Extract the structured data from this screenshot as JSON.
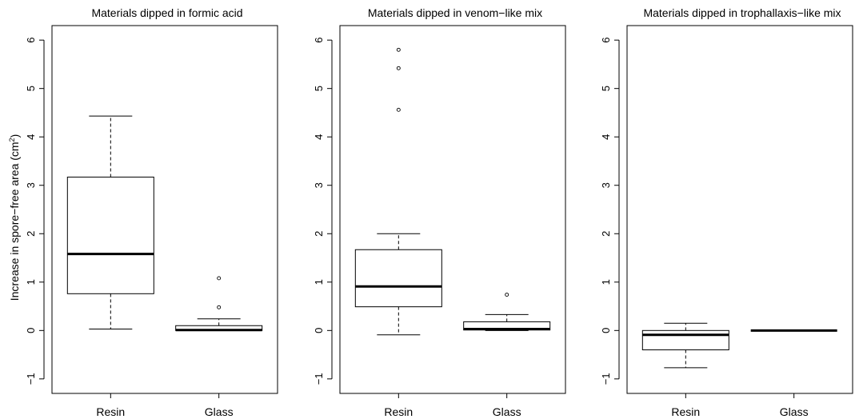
{
  "ylabel": "Increase in spore−free area (cm",
  "ylabel_sup": "2",
  "ylabel_close": ")",
  "chart_data": [
    {
      "type": "boxplot",
      "title": "Materials dipped in formic acid",
      "categories": [
        "Resin",
        "Glass"
      ],
      "ylim": [
        -1.3,
        6.3
      ],
      "yticks": [
        -1,
        0,
        1,
        2,
        3,
        4,
        5,
        6
      ],
      "boxes": [
        {
          "name": "Resin",
          "whisker_low": 0.03,
          "q1": 0.76,
          "median": 1.58,
          "q3": 3.17,
          "whisker_high": 4.43,
          "outliers": []
        },
        {
          "name": "Glass",
          "whisker_low": 0.0,
          "q1": 0.0,
          "median": 0.01,
          "q3": 0.1,
          "whisker_high": 0.24,
          "outliers": [
            0.48,
            1.08
          ]
        }
      ]
    },
    {
      "type": "boxplot",
      "title": "Materials dipped in venom−like mix",
      "categories": [
        "Resin",
        "Glass"
      ],
      "ylim": [
        -1.3,
        6.3
      ],
      "yticks": [
        -1,
        0,
        1,
        2,
        3,
        4,
        5,
        6
      ],
      "boxes": [
        {
          "name": "Resin",
          "whisker_low": -0.09,
          "q1": 0.49,
          "median": 0.91,
          "q3": 1.67,
          "whisker_high": 2.0,
          "outliers": [
            4.56,
            5.42,
            5.8
          ]
        },
        {
          "name": "Glass",
          "whisker_low": 0.0,
          "q1": 0.01,
          "median": 0.03,
          "q3": 0.18,
          "whisker_high": 0.33,
          "outliers": [
            0.74
          ]
        }
      ]
    },
    {
      "type": "boxplot",
      "title": "Materials dipped in trophallaxis−like mix",
      "categories": [
        "Resin",
        "Glass"
      ],
      "ylim": [
        -1.3,
        6.3
      ],
      "yticks": [
        -1,
        0,
        1,
        2,
        3,
        4,
        5,
        6
      ],
      "boxes": [
        {
          "name": "Resin",
          "whisker_low": -0.77,
          "q1": -0.4,
          "median": -0.09,
          "q3": 0.0,
          "whisker_high": 0.15,
          "outliers": []
        },
        {
          "name": "Glass",
          "whisker_low": 0.0,
          "q1": 0.0,
          "median": 0.0,
          "q3": 0.0,
          "whisker_high": 0.0,
          "outliers": []
        }
      ]
    }
  ]
}
